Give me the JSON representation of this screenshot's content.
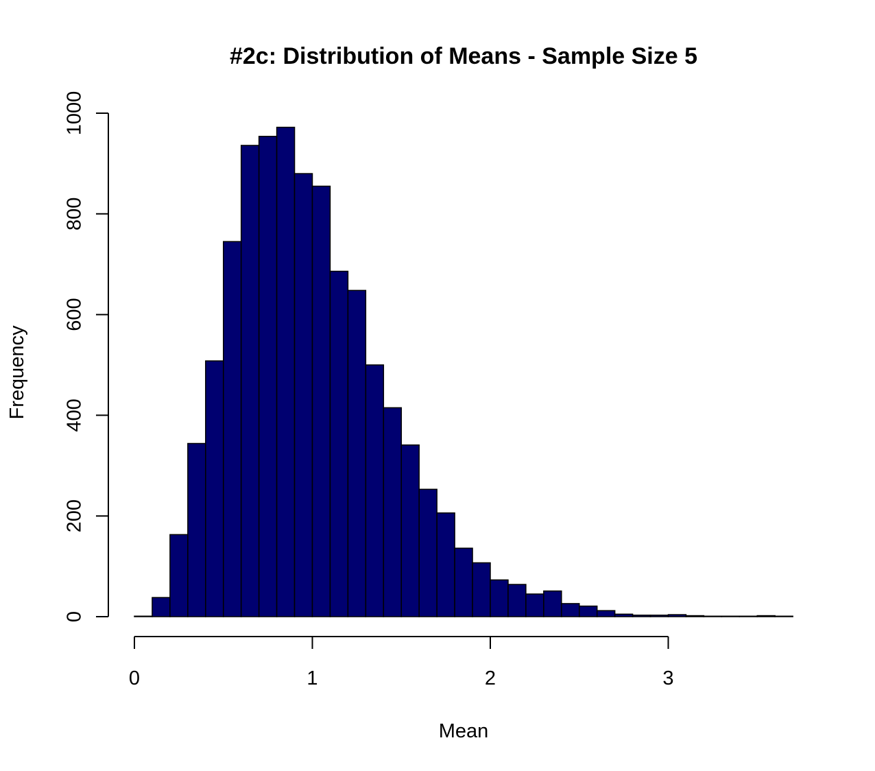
{
  "chart_data": {
    "type": "bar",
    "title": "#2c: Distribution of Means - Sample Size 5",
    "xlabel": "Mean",
    "ylabel": "Frequency",
    "bin_width": 0.1,
    "xlim": [
      0,
      3.7
    ],
    "ylim": [
      0,
      1000
    ],
    "x_ticks": [
      "0",
      "1",
      "2",
      "3"
    ],
    "y_ticks": [
      "0",
      "200",
      "400",
      "600",
      "800",
      "1000"
    ],
    "bin_starts": [
      0.0,
      0.1,
      0.2,
      0.3,
      0.4,
      0.5,
      0.6,
      0.7,
      0.8,
      0.9,
      1.0,
      1.1,
      1.2,
      1.3,
      1.4,
      1.5,
      1.6,
      1.7,
      1.8,
      1.9,
      2.0,
      2.1,
      2.2,
      2.3,
      2.4,
      2.5,
      2.6,
      2.7,
      2.8,
      2.9,
      3.0,
      3.1,
      3.2,
      3.3,
      3.4,
      3.5,
      3.6
    ],
    "values": [
      1,
      38,
      163,
      344,
      508,
      745,
      936,
      954,
      972,
      880,
      855,
      686,
      648,
      500,
      415,
      341,
      253,
      206,
      136,
      107,
      73,
      64,
      45,
      51,
      26,
      21,
      12,
      5,
      3,
      3,
      4,
      2,
      1,
      1,
      1,
      2,
      1
    ],
    "bar_color": "#000070",
    "grid": false
  }
}
